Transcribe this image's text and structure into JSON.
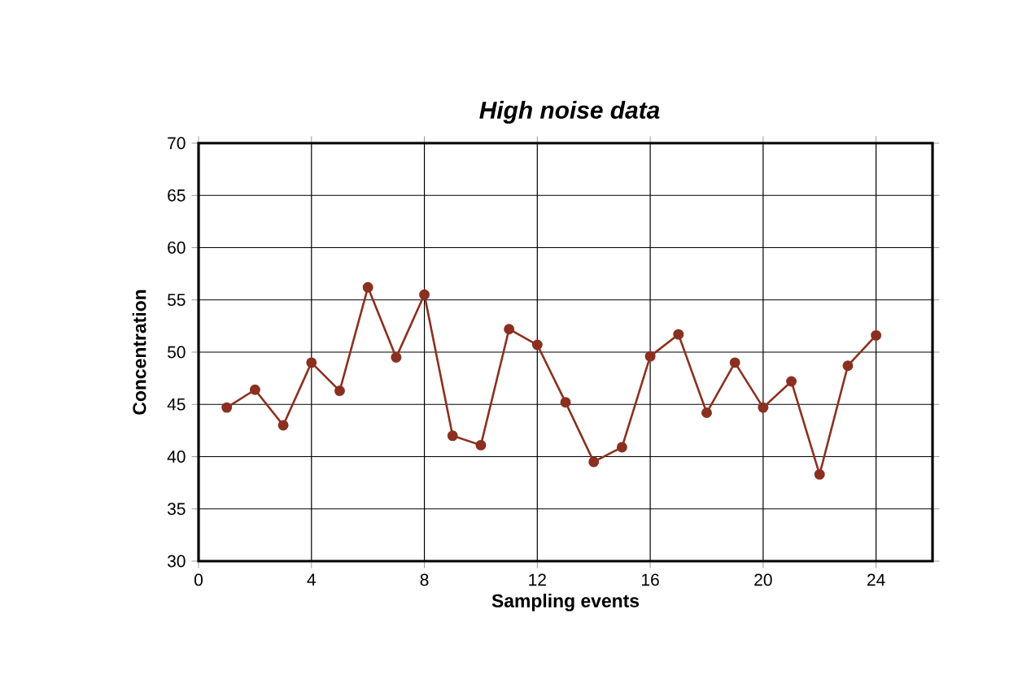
{
  "chart_data": {
    "type": "line",
    "title": "High noise data",
    "xlabel": "Sampling events",
    "ylabel": "Concentration",
    "x": [
      1,
      2,
      3,
      4,
      5,
      6,
      7,
      8,
      9,
      10,
      11,
      12,
      13,
      14,
      15,
      16,
      17,
      18,
      19,
      20,
      21,
      22,
      23,
      24
    ],
    "series": [
      {
        "color": "#8b3020",
        "values": [
          44.7,
          46.4,
          43.0,
          49.0,
          46.3,
          56.2,
          49.5,
          55.5,
          42.0,
          41.1,
          52.2,
          50.7,
          45.2,
          39.5,
          40.9,
          49.6,
          51.7,
          44.2,
          49.0,
          44.7,
          47.2,
          38.3,
          48.7,
          51.6
        ]
      }
    ],
    "xlim": [
      0,
      26
    ],
    "xticks": [
      0,
      4,
      8,
      12,
      16,
      20,
      24
    ],
    "ylim": [
      30,
      70
    ],
    "yticks": [
      30,
      35,
      40,
      45,
      50,
      55,
      60,
      65,
      70
    ],
    "grid": true,
    "marker": "circle",
    "line_style": "solid"
  }
}
